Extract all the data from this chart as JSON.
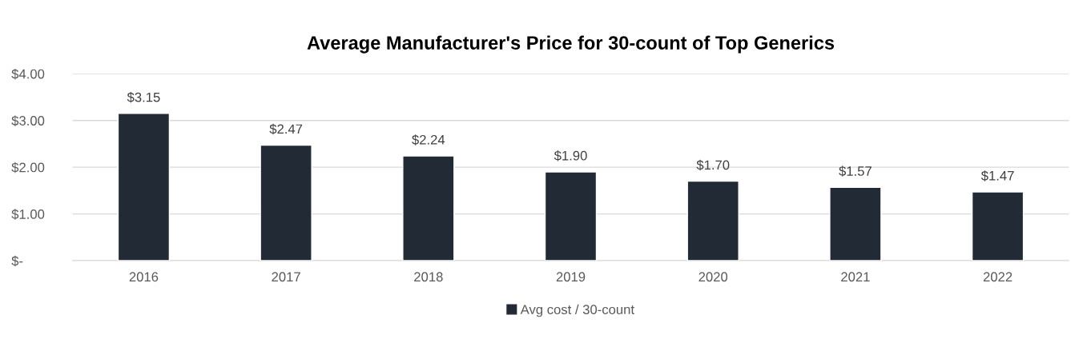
{
  "chart_data": {
    "type": "bar",
    "title": "Average Manufacturer's Price for 30-count of Top Generics",
    "categories": [
      "2016",
      "2017",
      "2018",
      "2019",
      "2020",
      "2021",
      "2022"
    ],
    "series": [
      {
        "name": "Avg cost / 30-count",
        "color": "#222a35",
        "values": [
          3.15,
          2.47,
          2.24,
          1.9,
          1.7,
          1.57,
          1.47
        ],
        "value_labels": [
          "$3.15",
          "$2.47",
          "$2.24",
          "$1.90",
          "$1.70",
          "$1.57",
          "$1.47"
        ]
      }
    ],
    "ylim": [
      0,
      4
    ],
    "yticks": [
      {
        "value": 0,
        "label": "$-"
      },
      {
        "value": 1,
        "label": "$1.00"
      },
      {
        "value": 2,
        "label": "$2.00"
      },
      {
        "value": 3,
        "label": "$3.00"
      },
      {
        "value": 4,
        "label": "$4.00"
      }
    ],
    "grid": "y",
    "legend": "bottom"
  }
}
